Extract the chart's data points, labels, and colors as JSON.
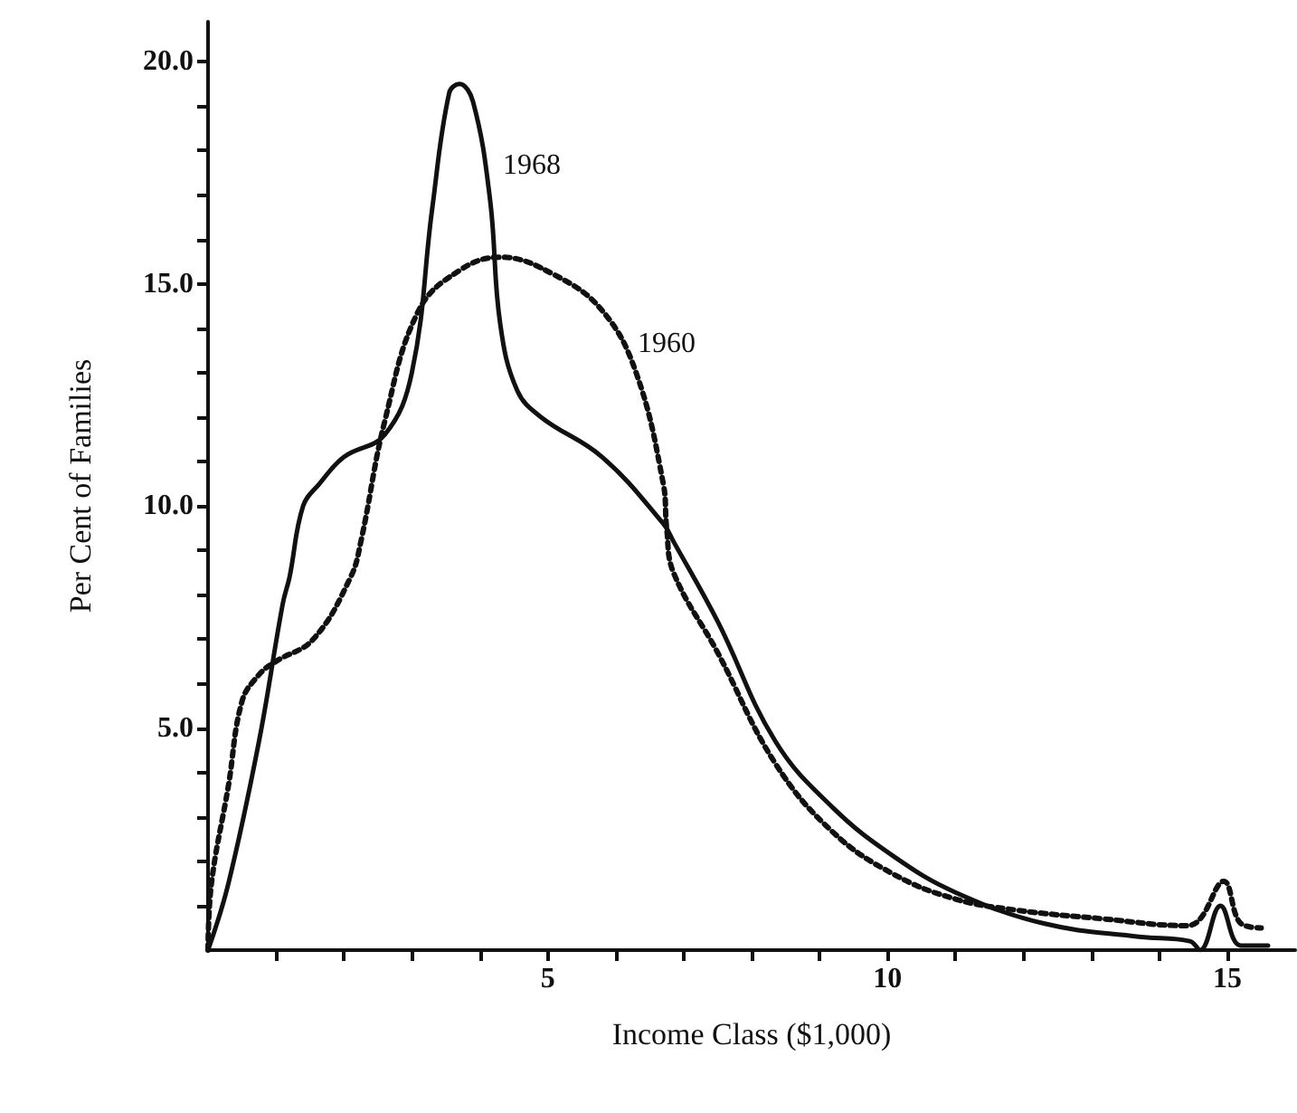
{
  "chart_data": {
    "type": "line",
    "xlabel": "Income Class ($1,000)",
    "ylabel": "Per Cent of Families",
    "xlim": [
      0,
      16
    ],
    "ylim": [
      0,
      20.9
    ],
    "xticks": [
      {
        "value": 1,
        "label": null
      },
      {
        "value": 2,
        "label": null
      },
      {
        "value": 3,
        "label": null
      },
      {
        "value": 4,
        "label": null
      },
      5,
      {
        "value": 6,
        "label": null
      },
      {
        "value": 7,
        "label": null
      },
      {
        "value": 8,
        "label": null
      },
      {
        "value": 9,
        "label": null
      },
      10,
      {
        "value": 11,
        "label": null
      },
      {
        "value": 12,
        "label": null
      },
      {
        "value": 13,
        "label": null
      },
      {
        "value": 14,
        "label": null
      },
      15
    ],
    "yticks": [
      {
        "value": 1,
        "label": null
      },
      {
        "value": 2,
        "label": null
      },
      {
        "value": 3,
        "label": null
      },
      {
        "value": 4,
        "label": null
      },
      {
        "value": 5,
        "label": "5.0"
      },
      {
        "value": 6,
        "label": null
      },
      {
        "value": 7,
        "label": null
      },
      {
        "value": 8,
        "label": null
      },
      {
        "value": 9,
        "label": null
      },
      {
        "value": 10,
        "label": "10.0"
      },
      {
        "value": 11,
        "label": null
      },
      {
        "value": 12,
        "label": null
      },
      {
        "value": 13,
        "label": null
      },
      {
        "value": 14,
        "label": null
      },
      {
        "value": 15,
        "label": "15.0"
      },
      {
        "value": 16,
        "label": null
      },
      {
        "value": 17,
        "label": null
      },
      {
        "value": 18,
        "label": null
      },
      {
        "value": 19,
        "label": null
      },
      {
        "value": 20,
        "label": "20.0"
      }
    ],
    "marker": "none",
    "grid": false,
    "series": [
      {
        "name": "1968",
        "color": "#111111",
        "line_style": "solid",
        "x": [
          0,
          0.3,
          0.75,
          1.1,
          1.2,
          1.4,
          1.64,
          2.0,
          2.6,
          3.0,
          3.3,
          3.55,
          3.7,
          3.9,
          4.15,
          4.3,
          4.55,
          4.9,
          5.8,
          6.7,
          6.85,
          7.5,
          8.35,
          9.2,
          10.1,
          11.0,
          12.3,
          13.7,
          14.45,
          14.6,
          14.9,
          15.2,
          15.6
        ],
        "values": [
          0,
          1.5,
          4.7,
          7.8,
          8.4,
          10,
          10.5,
          11.1,
          11.6,
          13,
          16.7,
          19.3,
          19.5,
          19.1,
          16.9,
          14.1,
          12.6,
          12.0,
          11.1,
          9.6,
          9.2,
          7.4,
          4.7,
          3.2,
          2.1,
          1.3,
          0.6,
          0.3,
          0.2,
          0,
          1.0,
          0.1,
          0.1
        ]
      },
      {
        "name": "1960",
        "color": "#111111",
        "line_style": "dotted",
        "x": [
          0,
          0.05,
          0.3,
          0.5,
          0.75,
          1.0,
          1.55,
          2.1,
          2.25,
          2.6,
          3.1,
          3.7,
          4.3,
          5.1,
          5.8,
          6.3,
          6.7,
          6.75,
          6.85,
          7.5,
          8.35,
          9.2,
          10.1,
          11.0,
          11.9,
          13.2,
          14.4,
          14.6,
          14.95,
          15.2,
          15.5
        ],
        "values": [
          0,
          1.5,
          3.7,
          5.6,
          6.2,
          6.5,
          7.0,
          8.4,
          9.2,
          11.9,
          14.4,
          15.3,
          15.6,
          15.2,
          14.4,
          13.0,
          10.5,
          9.5,
          8.5,
          6.7,
          4.2,
          2.65,
          1.7,
          1.15,
          0.9,
          0.7,
          0.55,
          0.7,
          1.55,
          0.6,
          0.5
        ]
      }
    ]
  }
}
